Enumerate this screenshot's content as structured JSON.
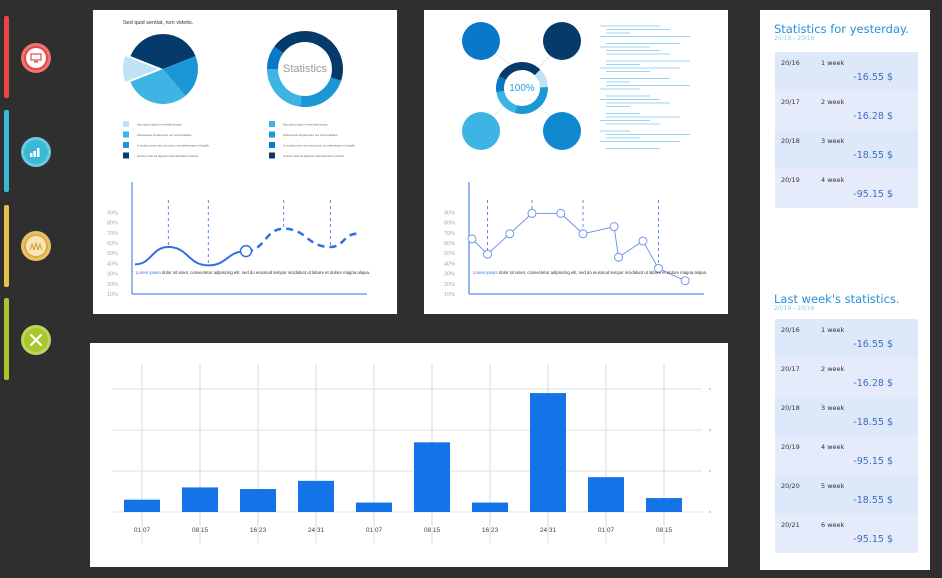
{
  "sidebar": {
    "items": [
      {
        "icon": "monitor-icon",
        "color": "#e84545"
      },
      {
        "icon": "bar-chart-icon",
        "color": "#3bb8d6"
      },
      {
        "icon": "people-icon",
        "color": "#e6b94a"
      },
      {
        "icon": "tools-icon",
        "color": "#a8c72c"
      }
    ]
  },
  "panel1": {
    "caption": "Sed quid sentiat, non videtis.",
    "donut_label": "Statistics",
    "legend_left": [
      "Nam dictum ligula et venenatis tempus.",
      "Pellentesque fringilla quam nec viverra dapibus.",
      "In tincidunt lorem vel urna cursus, nec pellentesque mi fringilla.",
      "Vivamus vitae elit dignissim tellus bibendum vehicula."
    ],
    "legend_right": [
      "Nam dictum ligula et venenatis tempus.",
      "Pellentesque fringilla quam nec viverra dapibus.",
      "In tincidunt lorem vel urna cursus, nec pellentesque mi fringilla.",
      "Vivamus vitae elit dignissim tellus bibendum vehicula."
    ],
    "note_highlight": "Lorem ipsum",
    "note_text": " dolor sit amet, consectetur adipiscing elit, sed do eiusmod tempor incididunt ut labore et dolore magna aliqua."
  },
  "panel2": {
    "center_label": "100%",
    "note_highlight": "Lorem ipsum",
    "note_text": " dolor sit amet, consectetur adipiscing elit, sed do eiusmod tempor incididunt ut labore et dolore magna aliqua."
  },
  "colors": {
    "navy": "#063a6b",
    "blue": "#0a78c8",
    "mid": "#1a97d4",
    "light": "#3db4e4",
    "pale": "#bfe3f3",
    "accent": "#2f6fe8",
    "bar": "#1473e6"
  },
  "chart_data": [
    {
      "type": "pie",
      "values": [
        12,
        38,
        20,
        30
      ],
      "colors": [
        "#bfe3f3",
        "#063a6b",
        "#1a97d4",
        "#3db4e4"
      ]
    },
    {
      "type": "pie",
      "donut": true,
      "values": [
        45,
        22,
        23,
        10
      ],
      "colors": [
        "#063a6b",
        "#1a97d4",
        "#3db4e4",
        "#0a78c8"
      ]
    },
    {
      "type": "line",
      "yticks": [
        "90%",
        "80%",
        "70%",
        "60%",
        "50%",
        "40%",
        "30%",
        "20%",
        "10%"
      ],
      "x": [
        0,
        0.15,
        0.33,
        0.5,
        0.67,
        0.88,
        1
      ],
      "y": [
        40,
        57,
        39,
        53,
        75,
        57,
        70
      ],
      "style": "solid-until-marker-then-dashed"
    },
    {
      "type": "line",
      "yticks": [
        "90%",
        "80%",
        "70%",
        "60%",
        "50%",
        "40%",
        "30%",
        "20%",
        "10%"
      ],
      "x": [
        0,
        0.07,
        0.17,
        0.27,
        0.4,
        0.5,
        0.64,
        0.66,
        0.77,
        0.84,
        0.96
      ],
      "y": [
        65,
        50,
        70,
        90,
        90,
        70,
        77,
        47,
        63,
        36,
        24
      ]
    },
    {
      "type": "bar",
      "categories": [
        "01 07",
        "08 15",
        "16 23",
        "24 31",
        "01 07",
        "08 15",
        "16 23",
        "24 31",
        "01 07",
        "08 15"
      ],
      "values": [
        3,
        6,
        5.6,
        7.6,
        2.3,
        17,
        2.3,
        29,
        8.5,
        3.4
      ],
      "ylim": [
        0,
        30
      ],
      "grid": true
    }
  ],
  "stats_yesterday": {
    "title": "Statistics for yesterday.",
    "range": "20/19 - 20/16",
    "rows": [
      {
        "date": "20/16",
        "week": "1 week",
        "value": "-16.55 $"
      },
      {
        "date": "20/17",
        "week": "2 week",
        "value": "-16.28 $"
      },
      {
        "date": "20/18",
        "week": "3 week",
        "value": "-18.55 $"
      },
      {
        "date": "20/19",
        "week": "4 week",
        "value": "-95.15 $"
      }
    ]
  },
  "stats_last_week": {
    "title": "Last week's statistics.",
    "range": "20/19 - 20/16",
    "rows": [
      {
        "date": "20/16",
        "week": "1 week",
        "value": "-16.55 $"
      },
      {
        "date": "20/17",
        "week": "2 week",
        "value": "-16.28 $"
      },
      {
        "date": "20/18",
        "week": "3 week",
        "value": "-18.55 $"
      },
      {
        "date": "20/19",
        "week": "4 week",
        "value": "-95.15 $"
      },
      {
        "date": "20/20",
        "week": "5 week",
        "value": "-18.55 $"
      },
      {
        "date": "20/21",
        "week": "6 week",
        "value": "-95.15 $"
      }
    ]
  }
}
